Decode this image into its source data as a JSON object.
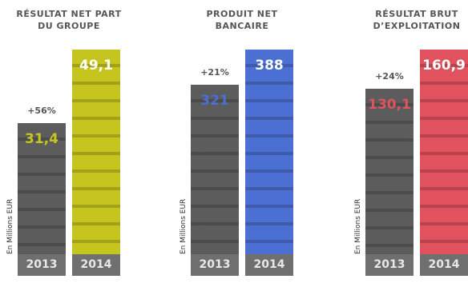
{
  "chart_data": [
    {
      "type": "bar",
      "title": "RÉSULTAT NET PART DU GROUPE",
      "categories": [
        "2013",
        "2014"
      ],
      "values": [
        31.4,
        49.1
      ],
      "value_labels": [
        "31,4",
        "49,1"
      ],
      "growth": "+56%",
      "y_label": "En Millions EUR",
      "colors": [
        "#5c5c5c",
        "#c6c51f"
      ]
    },
    {
      "type": "bar",
      "title": "PRODUIT NET BANCAIRE",
      "categories": [
        "2013",
        "2014"
      ],
      "values": [
        321,
        388
      ],
      "value_labels": [
        "321",
        "388"
      ],
      "growth": "+21%",
      "y_label": "En Millions EUR",
      "colors": [
        "#5c5c5c",
        "#4b6fd2"
      ]
    },
    {
      "type": "bar",
      "title": "RÉSULTAT BRUT D’EXPLOITATION",
      "categories": [
        "2013",
        "2014"
      ],
      "values": [
        130.1,
        160.9
      ],
      "value_labels": [
        "130,1",
        "160,9"
      ],
      "growth": "+24%",
      "y_label": "En Millions EUR",
      "colors": [
        "#5c5c5c",
        "#e0525e"
      ]
    }
  ]
}
